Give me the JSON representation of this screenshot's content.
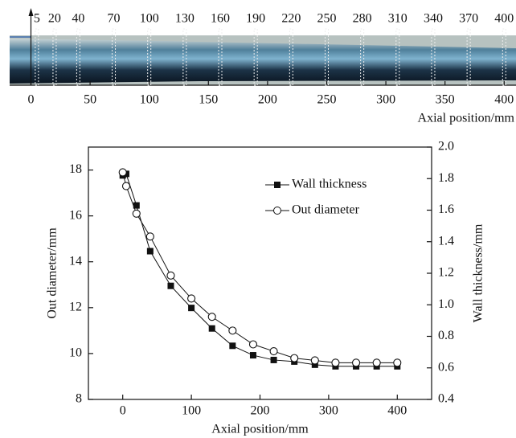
{
  "chart_data": [
    {
      "type": "photo-scale",
      "xlim": [
        -18,
        410
      ],
      "xticks": [
        0,
        50,
        100,
        150,
        200,
        250,
        300,
        350,
        400
      ],
      "markers": [
        5,
        20,
        40,
        70,
        100,
        130,
        160,
        190,
        220,
        250,
        280,
        310,
        340,
        370,
        400
      ],
      "xlabel": "Axial position/mm"
    },
    {
      "type": "line",
      "xlabel": "Axial position/mm",
      "ylabel": "Out diameter/mm",
      "y2label": "Wall thickness/mm",
      "x": [
        0,
        5,
        20,
        40,
        70,
        100,
        130,
        160,
        190,
        220,
        250,
        280,
        310,
        340,
        370,
        400
      ],
      "series": [
        {
          "name": "Wall thickness",
          "marker": "square",
          "color": "#111111",
          "axis": "y2",
          "values": [
            1.82,
            1.83,
            1.63,
            1.34,
            1.12,
            0.98,
            0.85,
            0.74,
            0.68,
            0.65,
            0.64,
            0.62,
            0.61,
            0.61,
            0.61,
            0.61
          ]
        },
        {
          "name": "Out diameter",
          "marker": "circle",
          "color": "#111111",
          "values": [
            17.9,
            17.3,
            16.1,
            15.1,
            13.4,
            12.4,
            11.6,
            11.0,
            10.4,
            10.1,
            9.8,
            9.7,
            9.6,
            9.6,
            9.6,
            9.6
          ]
        }
      ],
      "xlim": [
        -50,
        450
      ],
      "xticks": [
        0,
        100,
        200,
        300,
        400
      ],
      "ylim": [
        8,
        19
      ],
      "yticks": [
        8,
        10,
        12,
        14,
        16,
        18
      ],
      "y2lim": [
        0.4,
        2.0
      ],
      "y2ticks": [
        0.4,
        0.6,
        0.8,
        {
          "value": 1.0,
          "label": "1.0"
        },
        1.2,
        1.4,
        1.6,
        1.8,
        {
          "value": 2.0,
          "label": "2.0"
        }
      ],
      "legend": "upper right"
    }
  ]
}
